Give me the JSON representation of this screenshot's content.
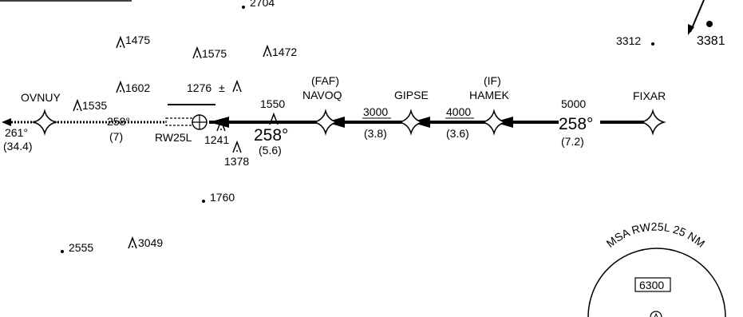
{
  "approach": {
    "final_course_text": "258°",
    "segments": [
      {
        "id": "fixar-hamek",
        "altitude": "5000",
        "course": "258°",
        "distance": "(7.2)"
      },
      {
        "id": "hamek-gipse",
        "altitude": "4000",
        "distance": "(3.6)"
      },
      {
        "id": "gipse-navoq",
        "altitude": "3000",
        "distance": "(3.8)"
      },
      {
        "id": "navoq-rw",
        "altitude": "1550",
        "course": "258°",
        "distance": "(5.6)"
      },
      {
        "id": "rw-ovnuy",
        "course": "258°",
        "distance": "(7)"
      },
      {
        "id": "ovnuy-out",
        "course": "261°",
        "distance": "(34.4)"
      }
    ]
  },
  "fixes": {
    "fixar": {
      "name": "FIXAR"
    },
    "hamek": {
      "name": "HAMEK",
      "role": "(IF)"
    },
    "gipse": {
      "name": "GIPSE"
    },
    "navoq": {
      "name": "NAVOQ",
      "role": "(FAF)"
    },
    "ovnuy": {
      "name": "OVNUY"
    }
  },
  "runway": {
    "label": "RW25L"
  },
  "elevations": {
    "spot_2704": "2704",
    "spot_3312": "3312",
    "spot_3381": "3381",
    "spot_1760": "1760",
    "spot_2555": "2555",
    "obs_1475": "1475",
    "obs_1575": "1575",
    "obs_1472": "1472",
    "obs_1602": "1602",
    "obs_1535": "1535",
    "obs_1276": "1276",
    "obs_1241": "1241",
    "obs_1378": "1378",
    "obs_3049": "3049",
    "plusminus": "±"
  },
  "msa": {
    "title": "MSA RW25L 25 NM",
    "altitude": "6300"
  }
}
